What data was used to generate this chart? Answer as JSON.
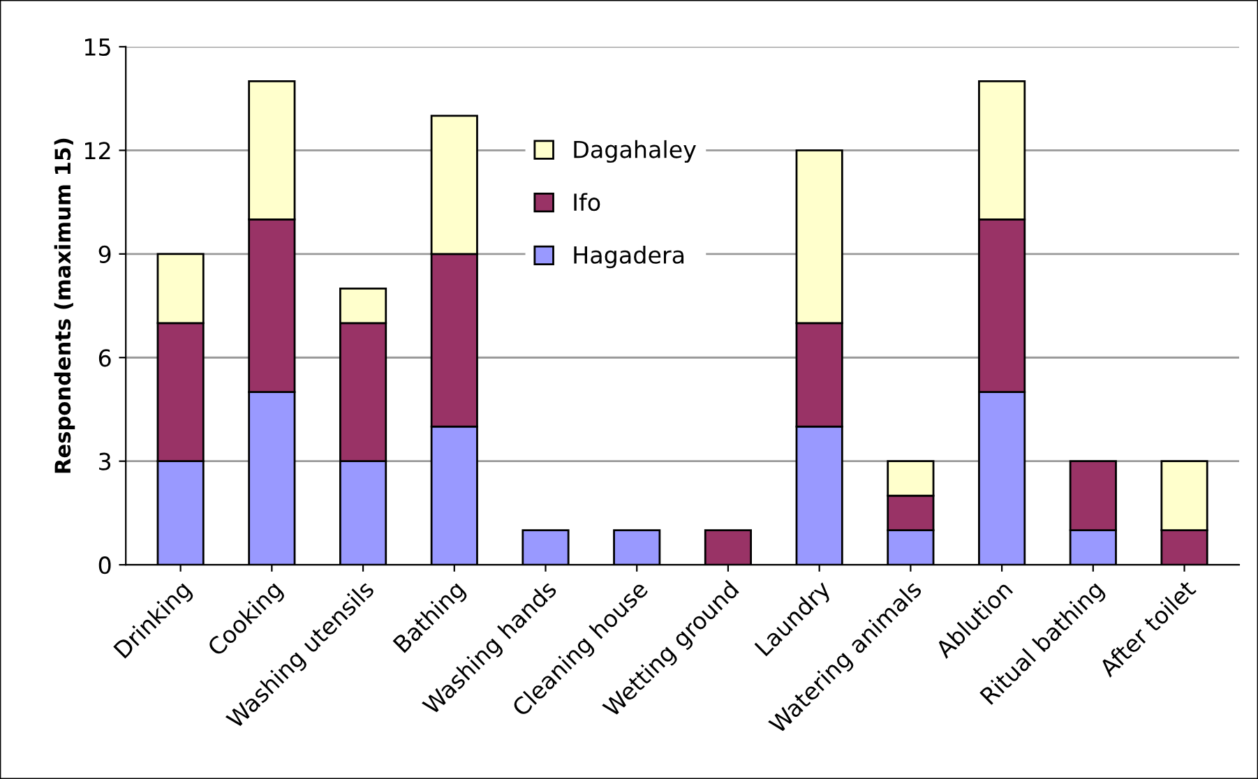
{
  "chart_data": {
    "type": "bar",
    "stacked": true,
    "ylabel": "Respondents (maximum 15)",
    "categories": [
      "Drinking",
      "Cooking",
      "Washing utensils",
      "Bathing",
      "Washing hands",
      "Cleaning house",
      "Wetting ground",
      "Laundry",
      "Watering animals",
      "Ablution",
      "Ritual bathing",
      "After toilet"
    ],
    "series": [
      {
        "name": "Hagadera",
        "color": "#9999ff",
        "values": [
          3,
          5,
          3,
          4,
          1,
          1,
          0,
          4,
          1,
          5,
          1,
          0
        ]
      },
      {
        "name": "Ifo",
        "color": "#993366",
        "values": [
          4,
          5,
          4,
          5,
          0,
          0,
          1,
          3,
          1,
          5,
          2,
          1
        ]
      },
      {
        "name": "Dagahaley",
        "color": "#ffffcc",
        "values": [
          2,
          4,
          1,
          4,
          0,
          0,
          0,
          5,
          1,
          4,
          0,
          2
        ]
      }
    ],
    "ylim": [
      0,
      15
    ],
    "yticks": [
      0,
      3,
      6,
      9,
      12,
      15
    ],
    "grid": "y",
    "legend": "top"
  }
}
